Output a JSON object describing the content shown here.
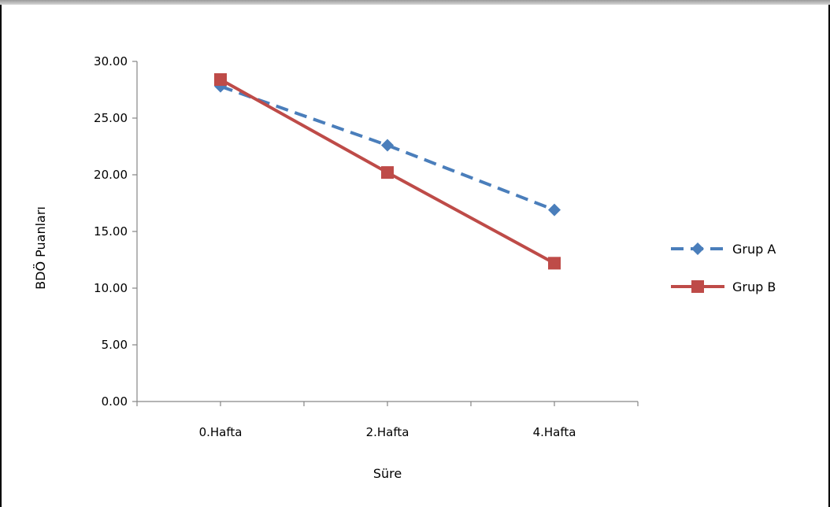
{
  "chart_data": {
    "type": "line",
    "title": "",
    "xlabel": "Süre",
    "ylabel": "BDÖ Puanları",
    "categories": [
      "0.Hafta",
      "2.Hafta",
      "4.Hafta"
    ],
    "ylim": [
      0,
      30
    ],
    "yticks": [
      "0.00",
      "5.00",
      "10.00",
      "15.00",
      "20.00",
      "25.00",
      "30.00"
    ],
    "grid": false,
    "legend_position": "right",
    "series": [
      {
        "name": "Grup A",
        "values": [
          27.8,
          22.6,
          16.9
        ],
        "color": "#4a7ebb",
        "line_style": "dashed",
        "marker": "diamond"
      },
      {
        "name": "Grup B",
        "values": [
          28.4,
          20.2,
          12.2
        ],
        "color": "#be4b48",
        "line_style": "solid",
        "marker": "square"
      }
    ]
  }
}
